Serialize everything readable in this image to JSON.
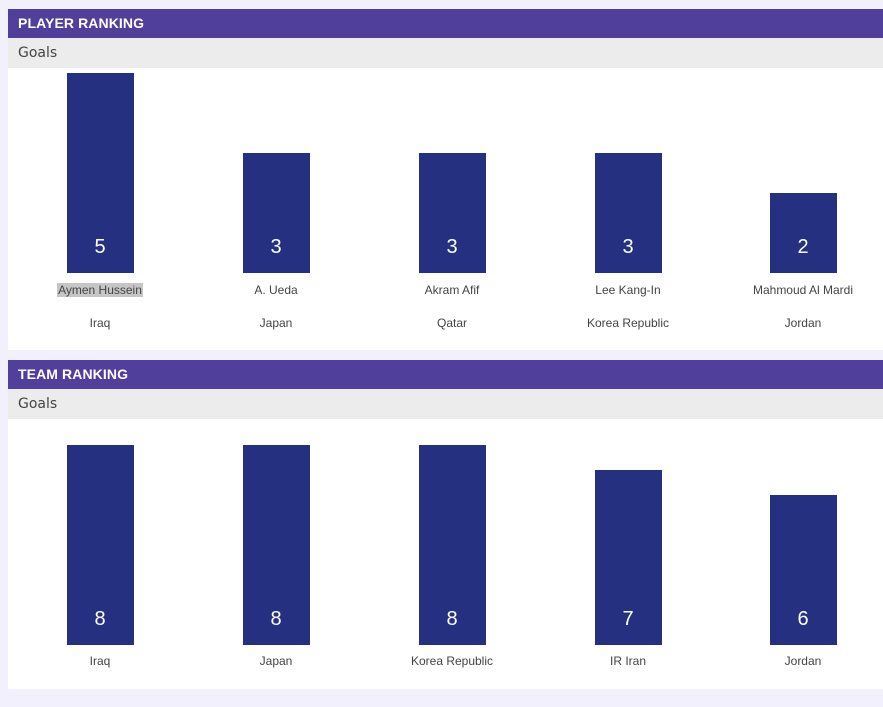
{
  "player_ranking": {
    "title": "PLAYER RANKING",
    "metric": "Goals",
    "players": [
      {
        "name": "Aymen Hussein",
        "team": "Iraq",
        "goals": 5,
        "highlighted": true
      },
      {
        "name": "A. Ueda",
        "team": "Japan",
        "goals": 3
      },
      {
        "name": "Akram Afif",
        "team": "Qatar",
        "goals": 3
      },
      {
        "name": "Lee Kang-In",
        "team": "Korea Republic",
        "goals": 3
      },
      {
        "name": "Mahmoud Al Mardi",
        "team": "Jordan",
        "goals": 2
      }
    ]
  },
  "team_ranking": {
    "title": "TEAM RANKING",
    "metric": "Goals",
    "teams": [
      {
        "name": "Iraq",
        "goals": 8
      },
      {
        "name": "Japan",
        "goals": 8
      },
      {
        "name": "Korea Republic",
        "goals": 8
      },
      {
        "name": "IR Iran",
        "goals": 7
      },
      {
        "name": "Jordan",
        "goals": 6
      }
    ]
  },
  "colors": {
    "header": "#50409c",
    "bar": "#253180",
    "subheader": "#ececec",
    "background": "#f2f0fd"
  },
  "chart_data": [
    {
      "type": "bar",
      "title": "PLAYER RANKING",
      "ylabel": "Goals",
      "categories": [
        "Aymen Hussein",
        "A. Ueda",
        "Akram Afif",
        "Lee Kang-In",
        "Mahmoud Al Mardi"
      ],
      "values": [
        5,
        3,
        3,
        3,
        2
      ]
    },
    {
      "type": "bar",
      "title": "TEAM RANKING",
      "ylabel": "Goals",
      "categories": [
        "Iraq",
        "Japan",
        "Korea Republic",
        "IR Iran",
        "Jordan"
      ],
      "values": [
        8,
        8,
        8,
        7,
        6
      ]
    }
  ]
}
